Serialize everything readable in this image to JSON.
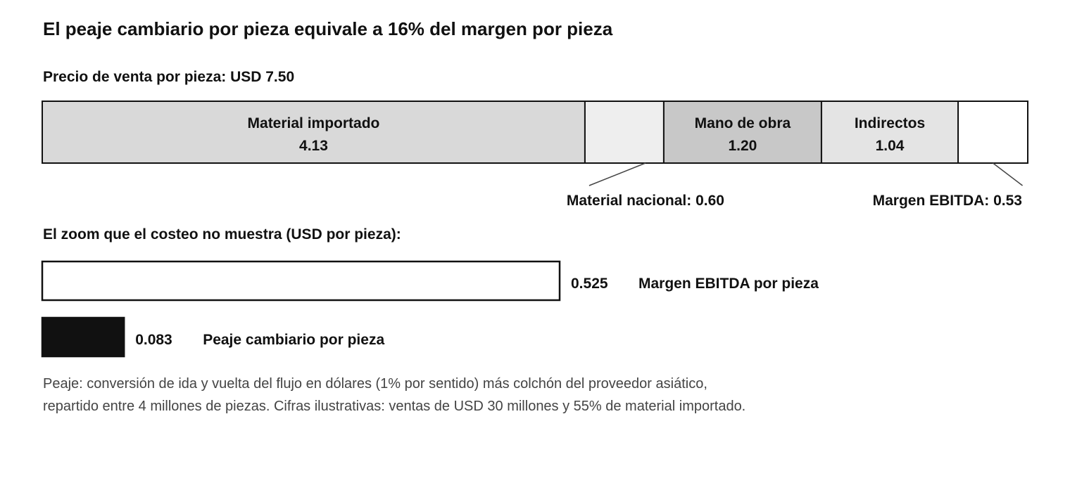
{
  "title": "El peaje cambiario por pieza equivale a 16% del margen por pieza",
  "price_label": "Precio de venta por pieza: USD 7.50",
  "zoom_title": "El zoom que el costeo no muestra (USD por pieza):",
  "footnote": {
    "line1": "Peaje: conversión de ida y vuelta del flujo en dólares (1% por sentido) más colchón del proveedor asiático,",
    "line2": "repartido entre 4 millones de piezas. Cifras ilustrativas: ventas de USD 30 millones y 55% de material importado."
  },
  "chart_data": [
    {
      "type": "bar",
      "orientation": "horizontal-stacked",
      "total": 7.5,
      "segments": [
        {
          "name": "Material importado",
          "value": 4.13,
          "value_label": "4.13",
          "color": "#d9d9d9",
          "label_position": "inside"
        },
        {
          "name": "Material nacional",
          "value": 0.6,
          "value_label": "0.60",
          "color": "#eeeeee",
          "label_position": "below",
          "callout": "Material nacional: 0.60"
        },
        {
          "name": "Mano de obra",
          "value": 1.2,
          "value_label": "1.20",
          "color": "#c8c8c8",
          "label_position": "inside"
        },
        {
          "name": "Indirectos",
          "value": 1.04,
          "value_label": "1.04",
          "color": "#e4e4e4",
          "label_position": "inside"
        },
        {
          "name": "Margen EBITDA",
          "value": 0.53,
          "value_label": "0.53",
          "color": "#ffffff",
          "label_position": "below",
          "callout": "Margen EBITDA: 0.53"
        }
      ]
    },
    {
      "type": "bar",
      "orientation": "horizontal",
      "bars": [
        {
          "name": "Margen EBITDA por pieza",
          "value": 0.525,
          "value_label": "0.525",
          "color": "#ffffff"
        },
        {
          "name": "Peaje cambiario por pieza",
          "value": 0.083,
          "value_label": "0.083",
          "color": "#111111"
        }
      ]
    }
  ]
}
